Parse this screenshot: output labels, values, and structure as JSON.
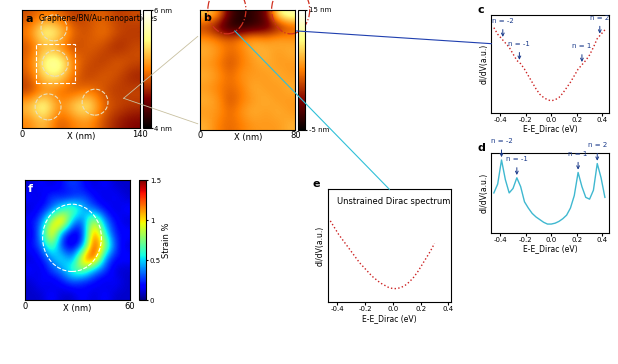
{
  "chart_data": [
    {
      "type": "heatmap",
      "panel_label": "a",
      "title": "Graphene/BN/Au-nanoparticles",
      "xlabel": "X (nm)",
      "xlim": [
        0,
        140
      ],
      "xticks": [
        0,
        140
      ],
      "ylim": [
        0,
        140
      ],
      "tick_labels": "x",
      "cells": [
        [
          4.8,
          5.0,
          4.9,
          4.7,
          4.8,
          4.9,
          4.7,
          4.8
        ],
        [
          5.0,
          5.7,
          5.5,
          4.9,
          4.8,
          5.0,
          4.8,
          4.7
        ],
        [
          4.8,
          5.2,
          5.0,
          4.7,
          4.9,
          4.8,
          4.6,
          4.8
        ],
        [
          4.9,
          5.6,
          5.8,
          5.0,
          4.8,
          4.7,
          4.9,
          4.8
        ],
        [
          4.8,
          5.4,
          5.5,
          4.9,
          4.7,
          4.9,
          4.8,
          4.6
        ],
        [
          4.7,
          5.0,
          4.9,
          4.8,
          5.0,
          4.8,
          4.7,
          4.8
        ],
        [
          5.3,
          5.8,
          5.0,
          5.4,
          5.6,
          4.9,
          4.8,
          4.7
        ],
        [
          5.0,
          5.3,
          4.8,
          5.0,
          5.1,
          4.8,
          4.6,
          4.5
        ]
      ],
      "colorbar": {
        "range": [
          4,
          6
        ],
        "ticks": [
          {
            "value": 6,
            "label": "6 nm"
          },
          {
            "value": 4,
            "label": "4 nm"
          }
        ]
      }
    },
    {
      "type": "heatmap",
      "panel_label": "b",
      "xlabel": "X (nm)",
      "xlim": [
        0,
        80
      ],
      "xticks": [
        0,
        80
      ],
      "ylim": [
        0,
        100
      ],
      "tick_labels": "x",
      "cells": [
        [
          8,
          6,
          -2,
          -4,
          -3,
          -1,
          10,
          12
        ],
        [
          2,
          -1,
          -4,
          -4,
          -3,
          -2,
          0,
          3
        ],
        [
          6,
          5,
          4,
          6,
          7,
          6,
          7,
          6
        ],
        [
          7,
          6,
          4,
          5,
          7,
          7,
          6,
          7
        ],
        [
          6,
          5,
          3,
          5,
          6,
          7,
          6,
          6
        ],
        [
          7,
          6,
          4,
          6,
          6,
          6,
          7,
          6
        ],
        [
          6,
          5,
          4,
          5,
          7,
          6,
          6,
          7
        ],
        [
          7,
          6,
          3,
          5,
          6,
          7,
          6,
          6
        ],
        [
          6,
          6,
          4,
          6,
          7,
          6,
          7,
          6
        ],
        [
          7,
          5,
          4,
          5,
          6,
          6,
          6,
          7
        ]
      ],
      "colorbar": {
        "range": [
          -5,
          15
        ],
        "ticks": [
          {
            "value": 15,
            "label": "15 nm"
          },
          {
            "value": -5,
            "label": "-5 nm"
          }
        ]
      }
    },
    {
      "type": "line",
      "panel_label": "c",
      "xlabel": "E-E_Dirac (eV)",
      "ylabel": "dI/dV(a.u.)",
      "xlim": [
        -0.47,
        0.45
      ],
      "xticks": [
        -0.4,
        -0.2,
        0.0,
        0.2,
        0.4
      ],
      "ylim": [
        0.1,
        1.0
      ],
      "tick_labels": "x",
      "series": [
        {
          "color": "#cc2222",
          "line_style": "dotted",
          "x": [
            -0.45,
            -0.42,
            -0.39,
            -0.36,
            -0.33,
            -0.3,
            -0.27,
            -0.24,
            -0.21,
            -0.18,
            -0.15,
            -0.12,
            -0.09,
            -0.06,
            -0.03,
            0.0,
            0.03,
            0.06,
            0.09,
            0.12,
            0.15,
            0.18,
            0.21,
            0.24,
            0.27,
            0.3,
            0.33,
            0.36,
            0.39,
            0.42
          ],
          "values": [
            0.88,
            0.82,
            0.78,
            0.74,
            0.7,
            0.64,
            0.58,
            0.55,
            0.5,
            0.44,
            0.38,
            0.32,
            0.27,
            0.24,
            0.22,
            0.21,
            0.22,
            0.24,
            0.28,
            0.33,
            0.38,
            0.44,
            0.5,
            0.54,
            0.58,
            0.63,
            0.7,
            0.78,
            0.82,
            0.86
          ]
        }
      ],
      "annotations": [
        {
          "text": "n = -2",
          "x": -0.38,
          "y": 0.77
        },
        {
          "text": "n = -1",
          "x": -0.25,
          "y": 0.56
        },
        {
          "text": "n = 1",
          "x": 0.24,
          "y": 0.54
        },
        {
          "text": "n = 2",
          "x": 0.38,
          "y": 0.8
        }
      ]
    },
    {
      "type": "line",
      "panel_label": "d",
      "xlabel": "E-E_Dirac (eV)",
      "ylabel": "dI/dV(a.u.)",
      "xlim": [
        -0.47,
        0.45
      ],
      "xticks": [
        -0.4,
        -0.2,
        0.0,
        0.2,
        0.4
      ],
      "ylim": [
        0.1,
        1.0
      ],
      "tick_labels": "x",
      "series": [
        {
          "color": "#3fb8d0",
          "line_style": "solid",
          "x": [
            -0.45,
            -0.42,
            -0.39,
            -0.36,
            -0.33,
            -0.3,
            -0.27,
            -0.24,
            -0.21,
            -0.18,
            -0.15,
            -0.12,
            -0.09,
            -0.06,
            -0.03,
            0.0,
            0.03,
            0.06,
            0.09,
            0.12,
            0.15,
            0.18,
            0.21,
            0.24,
            0.27,
            0.3,
            0.33,
            0.36,
            0.39,
            0.42
          ],
          "values": [
            0.55,
            0.65,
            0.92,
            0.7,
            0.55,
            0.6,
            0.72,
            0.62,
            0.45,
            0.38,
            0.32,
            0.28,
            0.25,
            0.22,
            0.2,
            0.2,
            0.21,
            0.23,
            0.26,
            0.3,
            0.38,
            0.52,
            0.78,
            0.62,
            0.5,
            0.48,
            0.58,
            0.88,
            0.72,
            0.5
          ]
        }
      ],
      "annotations": [
        {
          "text": "n = -2",
          "x": -0.39,
          "y": 0.92
        },
        {
          "text": "n = -1",
          "x": -0.27,
          "y": 0.72
        },
        {
          "text": "n = 1",
          "x": 0.21,
          "y": 0.78
        },
        {
          "text": "n = 2",
          "x": 0.36,
          "y": 0.88
        }
      ]
    },
    {
      "type": "line",
      "panel_label": "e",
      "title": "Unstrained Dirac spectrum",
      "xlabel": "E-E_Dirac (eV)",
      "ylabel": "dI/dV(a.u.)",
      "xlim": [
        -0.47,
        0.42
      ],
      "xticks": [
        -0.4,
        -0.2,
        0.0,
        0.2,
        0.4
      ],
      "ylim": [
        0.0,
        1.0
      ],
      "tick_labels": "x",
      "series": [
        {
          "color": "#cc2222",
          "line_style": "dotted",
          "x": [
            -0.45,
            -0.42,
            -0.39,
            -0.36,
            -0.33,
            -0.3,
            -0.27,
            -0.24,
            -0.21,
            -0.18,
            -0.15,
            -0.12,
            -0.09,
            -0.06,
            -0.03,
            0.0,
            0.03,
            0.06,
            0.09,
            0.12,
            0.15,
            0.18,
            0.21,
            0.24,
            0.27,
            0.3
          ],
          "values": [
            0.72,
            0.66,
            0.6,
            0.55,
            0.5,
            0.45,
            0.4,
            0.35,
            0.31,
            0.27,
            0.23,
            0.2,
            0.17,
            0.15,
            0.13,
            0.12,
            0.12,
            0.13,
            0.15,
            0.18,
            0.22,
            0.27,
            0.33,
            0.39,
            0.45,
            0.52
          ]
        }
      ]
    },
    {
      "type": "heatmap",
      "panel_label": "f",
      "xlabel": "X (nm)",
      "xlim": [
        0,
        60
      ],
      "xticks": [
        0,
        60
      ],
      "ylim": [
        0,
        60
      ],
      "tick_labels": "x",
      "cells": [
        [
          0.1,
          0.2,
          0.1,
          0.2,
          0.3,
          0.2,
          0.1,
          0.2,
          0.1,
          0.1
        ],
        [
          0.2,
          0.1,
          0.3,
          0.2,
          0.2,
          0.3,
          0.2,
          0.1,
          0.2,
          0.1
        ],
        [
          0.1,
          0.2,
          0.3,
          0.6,
          0.8,
          0.5,
          0.3,
          0.2,
          0.1,
          0.2
        ],
        [
          0.2,
          0.3,
          0.9,
          1.3,
          0.4,
          0.3,
          1.0,
          0.4,
          0.2,
          0.1
        ],
        [
          0.1,
          0.4,
          1.2,
          0.3,
          0.1,
          0.2,
          1.3,
          0.6,
          0.2,
          0.2
        ],
        [
          0.2,
          0.3,
          0.8,
          0.2,
          0.1,
          0.3,
          1.4,
          0.9,
          0.3,
          0.1
        ],
        [
          0.1,
          0.2,
          0.4,
          0.6,
          0.3,
          1.2,
          1.4,
          0.4,
          0.2,
          0.2
        ],
        [
          0.2,
          0.1,
          0.3,
          0.4,
          0.7,
          0.8,
          0.4,
          0.3,
          0.1,
          0.1
        ],
        [
          0.1,
          0.2,
          0.1,
          0.2,
          0.3,
          0.2,
          0.2,
          0.1,
          0.2,
          0.1
        ],
        [
          0.1,
          0.1,
          0.2,
          0.1,
          0.1,
          0.2,
          0.1,
          0.2,
          0.1,
          0.1
        ]
      ],
      "colorbar": {
        "label": "Strain %",
        "range": [
          0,
          1.5
        ],
        "ticks": [
          0,
          0.5,
          1,
          1.5
        ]
      }
    }
  ]
}
